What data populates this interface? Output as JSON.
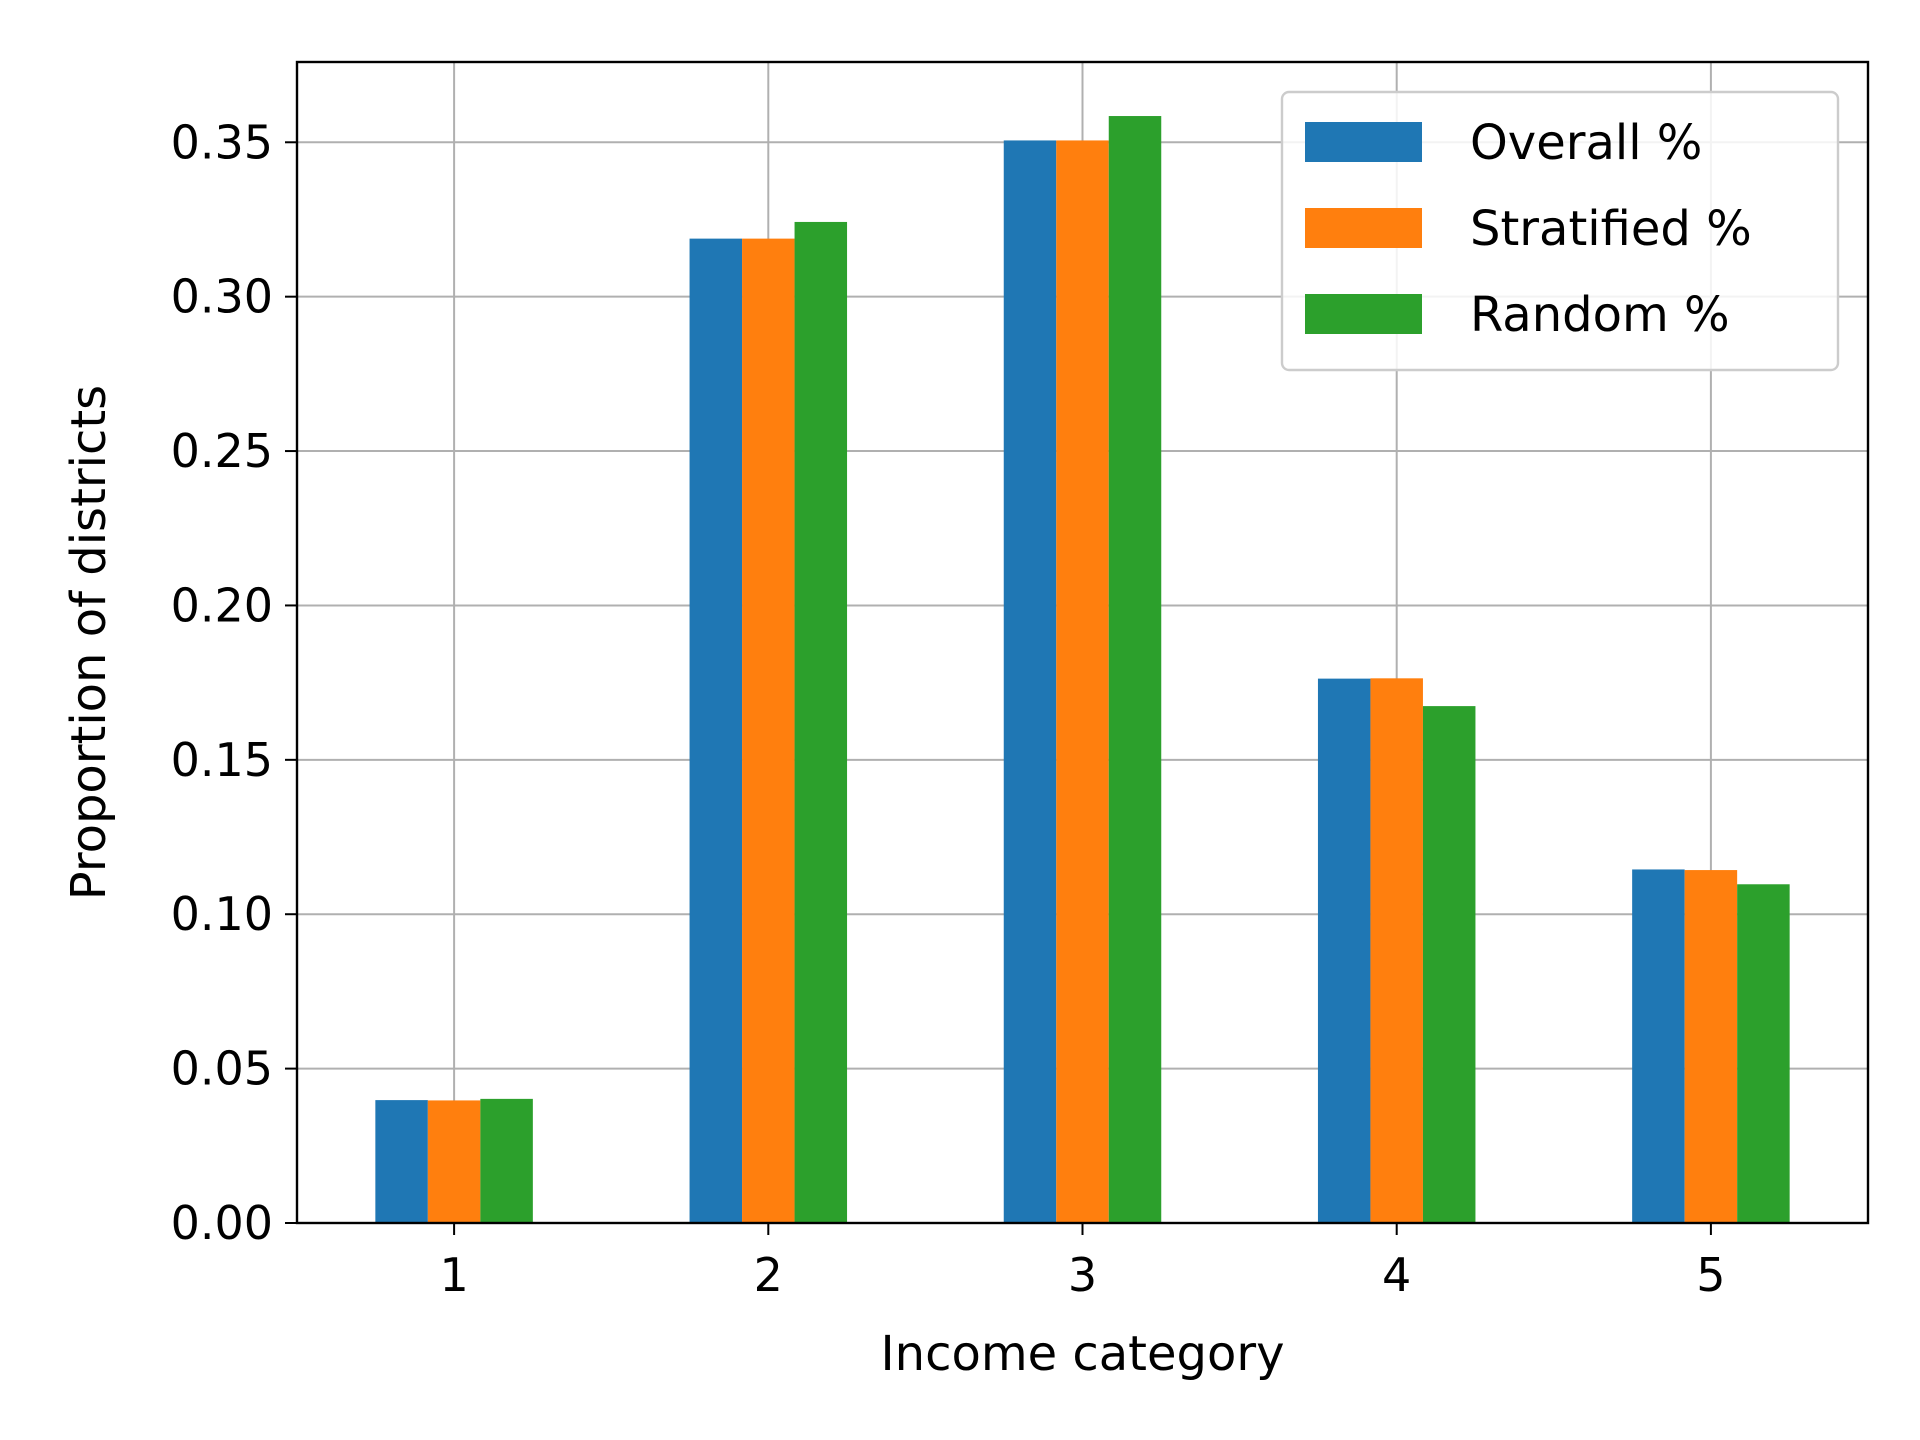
{
  "chart_data": {
    "type": "bar",
    "title": "",
    "xlabel": "Income category",
    "ylabel": "Proportion of districts",
    "categories": [
      "1",
      "2",
      "3",
      "4",
      "5"
    ],
    "ylim": [
      0,
      0.376
    ],
    "yticks": [
      "0.00",
      "0.05",
      "0.10",
      "0.15",
      "0.20",
      "0.25",
      "0.30",
      "0.35"
    ],
    "grid": true,
    "legend_position": "top-right",
    "series": [
      {
        "name": "Overall %",
        "color": "#1f77b4",
        "values": [
          0.0398,
          0.3188,
          0.3506,
          0.1763,
          0.1145
        ]
      },
      {
        "name": "Stratified %",
        "color": "#ff7f0e",
        "values": [
          0.0397,
          0.3188,
          0.3506,
          0.1764,
          0.1143
        ]
      },
      {
        "name": "Random %",
        "color": "#2ca02c",
        "values": [
          0.0402,
          0.3242,
          0.3585,
          0.1674,
          0.1097
        ]
      }
    ]
  }
}
